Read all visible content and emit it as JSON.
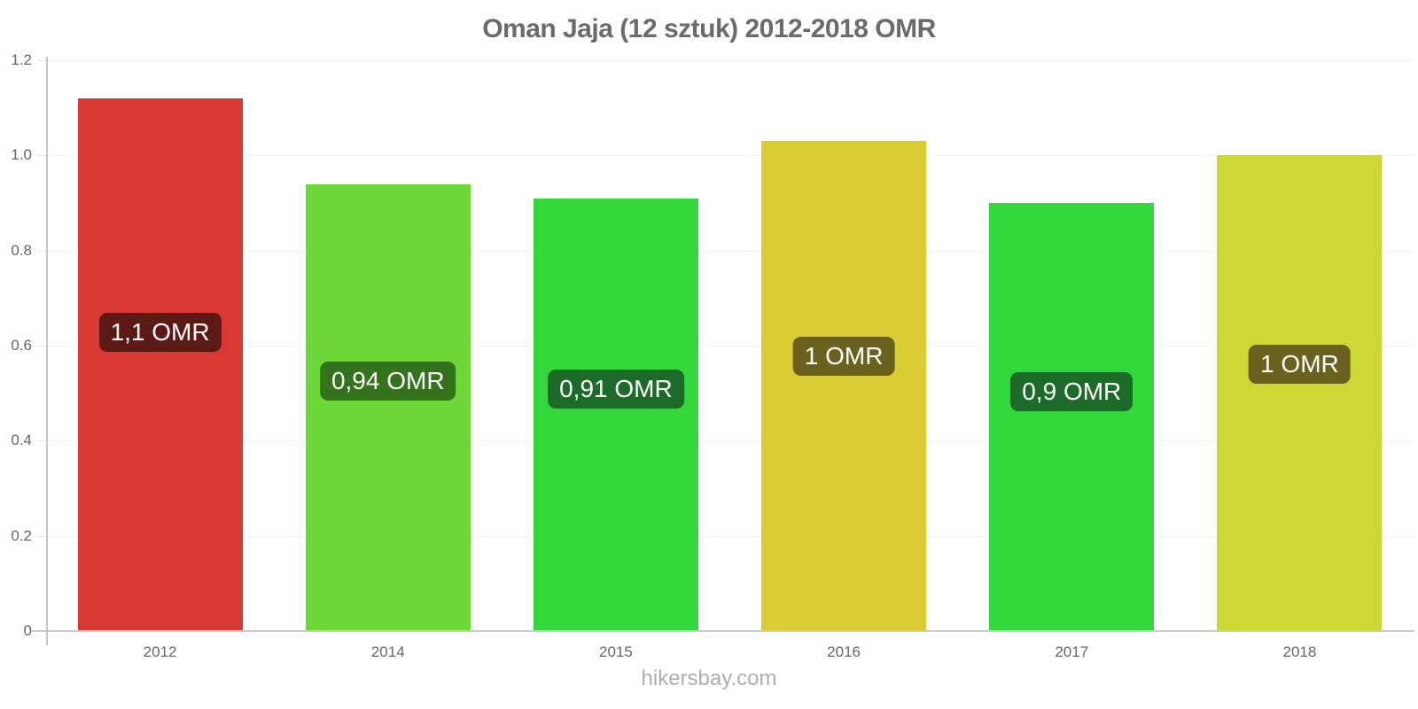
{
  "chart_data": {
    "type": "bar",
    "title": "Oman Jaja (12 sztuk) 2012-2018 OMR",
    "xlabel": "",
    "ylabel": "",
    "ylim": [
      0,
      1.2
    ],
    "grid": true,
    "legend": "none",
    "categories": [
      "2012",
      "2014",
      "2015",
      "2016",
      "2017",
      "2018"
    ],
    "values": [
      1.12,
      0.94,
      0.91,
      1.03,
      0.9,
      1.0
    ],
    "bar_labels": [
      "1,1 OMR",
      "0,94 OMR",
      "0,91 OMR",
      "1 OMR",
      "0,9 OMR",
      "1 OMR"
    ],
    "bar_colors": [
      "#d93734",
      "#6cd938",
      "#33d93c",
      "#d9cc34",
      "#33d93c",
      "#ccd934"
    ],
    "label_bg_colors": [
      "#5c1a16",
      "#35721c",
      "#1c6b28",
      "#6b611e",
      "#1c6b28",
      "#6b611e"
    ],
    "yticks": [
      {
        "value": 0,
        "label": "0"
      },
      {
        "value": 0.2,
        "label": "0.2"
      },
      {
        "value": 0.4,
        "label": "0.4"
      },
      {
        "value": 0.6,
        "label": "0.6"
      },
      {
        "value": 0.8,
        "label": "0.8"
      },
      {
        "value": 1.0,
        "label": "1.0"
      },
      {
        "value": 1.2,
        "label": "1.2"
      }
    ]
  },
  "footer": {
    "text": "hikersbay.com"
  },
  "colors": {
    "axis": "#c9c9c9",
    "grid": "#f3f3f3",
    "tick_stub": "#e4e4e4",
    "tick_label": "#666666",
    "title": "#6b6b6b",
    "footer": "#a9b2a9",
    "value_text": "#ffffff"
  }
}
